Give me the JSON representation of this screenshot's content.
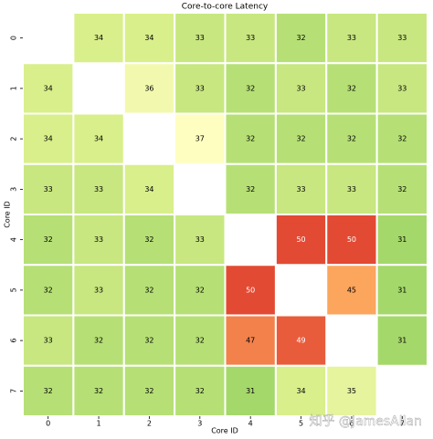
{
  "chart_data": {
    "type": "heatmap",
    "title": "Core-to-core Latency",
    "x_label": "Core ID",
    "y_label": "Core ID",
    "x_categories": [
      "0",
      "1",
      "2",
      "3",
      "4",
      "5",
      "6",
      "7"
    ],
    "y_categories": [
      "0",
      "1",
      "2",
      "3",
      "4",
      "5",
      "6",
      "7"
    ],
    "values": [
      [
        null,
        34,
        34,
        33,
        33,
        32,
        33,
        33
      ],
      [
        34,
        null,
        36,
        33,
        32,
        33,
        32,
        33
      ],
      [
        34,
        34,
        null,
        37,
        32,
        32,
        32,
        32
      ],
      [
        33,
        33,
        34,
        null,
        32,
        33,
        33,
        32
      ],
      [
        32,
        33,
        32,
        33,
        null,
        50,
        50,
        31
      ],
      [
        32,
        33,
        32,
        32,
        50,
        null,
        45,
        31
      ],
      [
        33,
        32,
        32,
        32,
        47,
        49,
        null,
        31
      ],
      [
        32,
        32,
        32,
        32,
        31,
        34,
        35,
        null
      ]
    ],
    "colormap": [
      {
        "value": 31,
        "color": "#a5d86a"
      },
      {
        "value": 34,
        "color": "#d9ef8b"
      },
      {
        "value": 37,
        "color": "#fefec0"
      },
      {
        "value": 45,
        "color": "#fca55d"
      },
      {
        "value": 50,
        "color": "#e34a33"
      }
    ],
    "watermark": "知乎 @JamesAllan"
  }
}
